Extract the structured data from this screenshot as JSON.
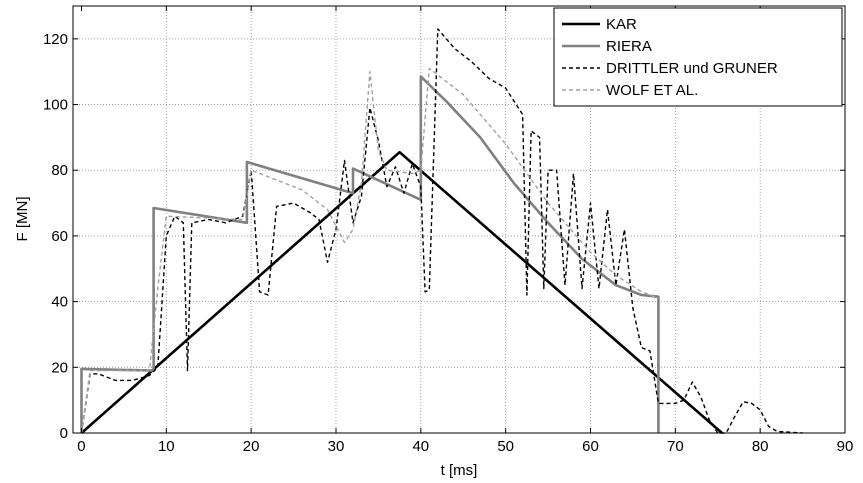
{
  "chart_data": {
    "type": "line",
    "xlabel": "t [ms]",
    "ylabel": "F [MN]",
    "xlim": [
      -1,
      90
    ],
    "ylim": [
      0,
      130
    ],
    "xticks": [
      0,
      10,
      20,
      30,
      40,
      50,
      60,
      70,
      80,
      90
    ],
    "yticks": [
      0,
      20,
      40,
      60,
      80,
      100,
      120
    ],
    "grid": true,
    "legend_position": "top-right",
    "series": [
      {
        "name": "KAR",
        "color": "#000000",
        "style": "solid",
        "points": [
          [
            0,
            0
          ],
          [
            37.5,
            85.5
          ],
          [
            75.5,
            0
          ]
        ]
      },
      {
        "name": "RIERA",
        "color": "#808080",
        "style": "solid",
        "points": [
          [
            0,
            0
          ],
          [
            0,
            19.5
          ],
          [
            8.5,
            19
          ],
          [
            8.5,
            68.5
          ],
          [
            19.5,
            64
          ],
          [
            19.5,
            82.5
          ],
          [
            32,
            73
          ],
          [
            32,
            80.5
          ],
          [
            40,
            71
          ],
          [
            40,
            108.5
          ],
          [
            43,
            101
          ],
          [
            47,
            90
          ],
          [
            51,
            76
          ],
          [
            55,
            64
          ],
          [
            59,
            53
          ],
          [
            63,
            45
          ],
          [
            66,
            42
          ],
          [
            68,
            41.5
          ],
          [
            68,
            0
          ]
        ]
      },
      {
        "name": "DRITTLER und GRUNER",
        "color": "#000000",
        "style": "dashed",
        "points": [
          [
            0,
            0
          ],
          [
            1,
            18
          ],
          [
            2,
            18
          ],
          [
            4,
            16
          ],
          [
            6,
            16
          ],
          [
            8,
            17.5
          ],
          [
            9,
            20
          ],
          [
            10,
            60
          ],
          [
            11,
            66
          ],
          [
            12,
            64
          ],
          [
            12.5,
            19
          ],
          [
            13,
            64
          ],
          [
            15,
            65
          ],
          [
            17,
            64
          ],
          [
            19,
            66
          ],
          [
            20,
            80
          ],
          [
            21,
            43
          ],
          [
            22,
            42
          ],
          [
            23,
            69
          ],
          [
            25,
            70
          ],
          [
            27,
            67
          ],
          [
            28,
            65
          ],
          [
            29,
            52
          ],
          [
            30,
            62
          ],
          [
            31,
            83
          ],
          [
            32,
            64
          ],
          [
            33,
            72
          ],
          [
            34,
            99
          ],
          [
            35,
            89
          ],
          [
            36,
            75
          ],
          [
            37,
            81
          ],
          [
            38,
            73
          ],
          [
            39,
            82
          ],
          [
            40,
            75
          ],
          [
            40.5,
            43
          ],
          [
            41,
            43.5
          ],
          [
            42,
            123
          ],
          [
            44,
            117
          ],
          [
            46,
            113
          ],
          [
            48,
            108
          ],
          [
            50,
            105
          ],
          [
            51,
            101
          ],
          [
            52,
            97
          ],
          [
            52.5,
            42
          ],
          [
            53,
            92
          ],
          [
            54,
            90
          ],
          [
            54.5,
            44
          ],
          [
            55,
            80
          ],
          [
            56,
            80
          ],
          [
            57,
            45
          ],
          [
            58,
            79
          ],
          [
            59,
            44
          ],
          [
            60,
            70
          ],
          [
            61,
            44
          ],
          [
            62,
            68
          ],
          [
            63,
            45
          ],
          [
            64,
            62
          ],
          [
            65,
            38
          ],
          [
            66,
            26
          ],
          [
            67,
            25
          ],
          [
            68,
            9
          ],
          [
            70,
            9
          ],
          [
            71,
            10
          ],
          [
            72,
            15.5
          ],
          [
            73,
            11
          ],
          [
            74,
            4
          ],
          [
            75,
            0
          ],
          [
            76,
            0
          ],
          [
            77,
            5
          ],
          [
            78,
            9.5
          ],
          [
            79,
            9
          ],
          [
            80,
            7
          ],
          [
            81,
            2
          ],
          [
            82,
            0.5
          ],
          [
            85,
            0
          ]
        ]
      },
      {
        "name": "WOLF ET AL.",
        "color": "#a0a0a0",
        "style": "dashed",
        "points": [
          [
            0,
            0
          ],
          [
            1,
            19
          ],
          [
            8,
            19
          ],
          [
            9,
            44
          ],
          [
            10,
            66
          ],
          [
            19,
            65
          ],
          [
            20,
            80
          ],
          [
            26,
            74
          ],
          [
            29,
            68
          ],
          [
            31,
            58
          ],
          [
            32,
            62
          ],
          [
            33,
            76
          ],
          [
            34,
            110
          ],
          [
            35,
            86
          ],
          [
            36,
            80
          ],
          [
            39,
            79
          ],
          [
            40,
            80
          ],
          [
            41,
            111
          ],
          [
            45,
            103
          ],
          [
            50,
            88
          ],
          [
            55,
            70
          ],
          [
            60,
            55
          ],
          [
            63,
            48
          ],
          [
            66,
            43
          ],
          [
            67,
            42
          ],
          [
            68,
            41
          ]
        ]
      }
    ]
  }
}
